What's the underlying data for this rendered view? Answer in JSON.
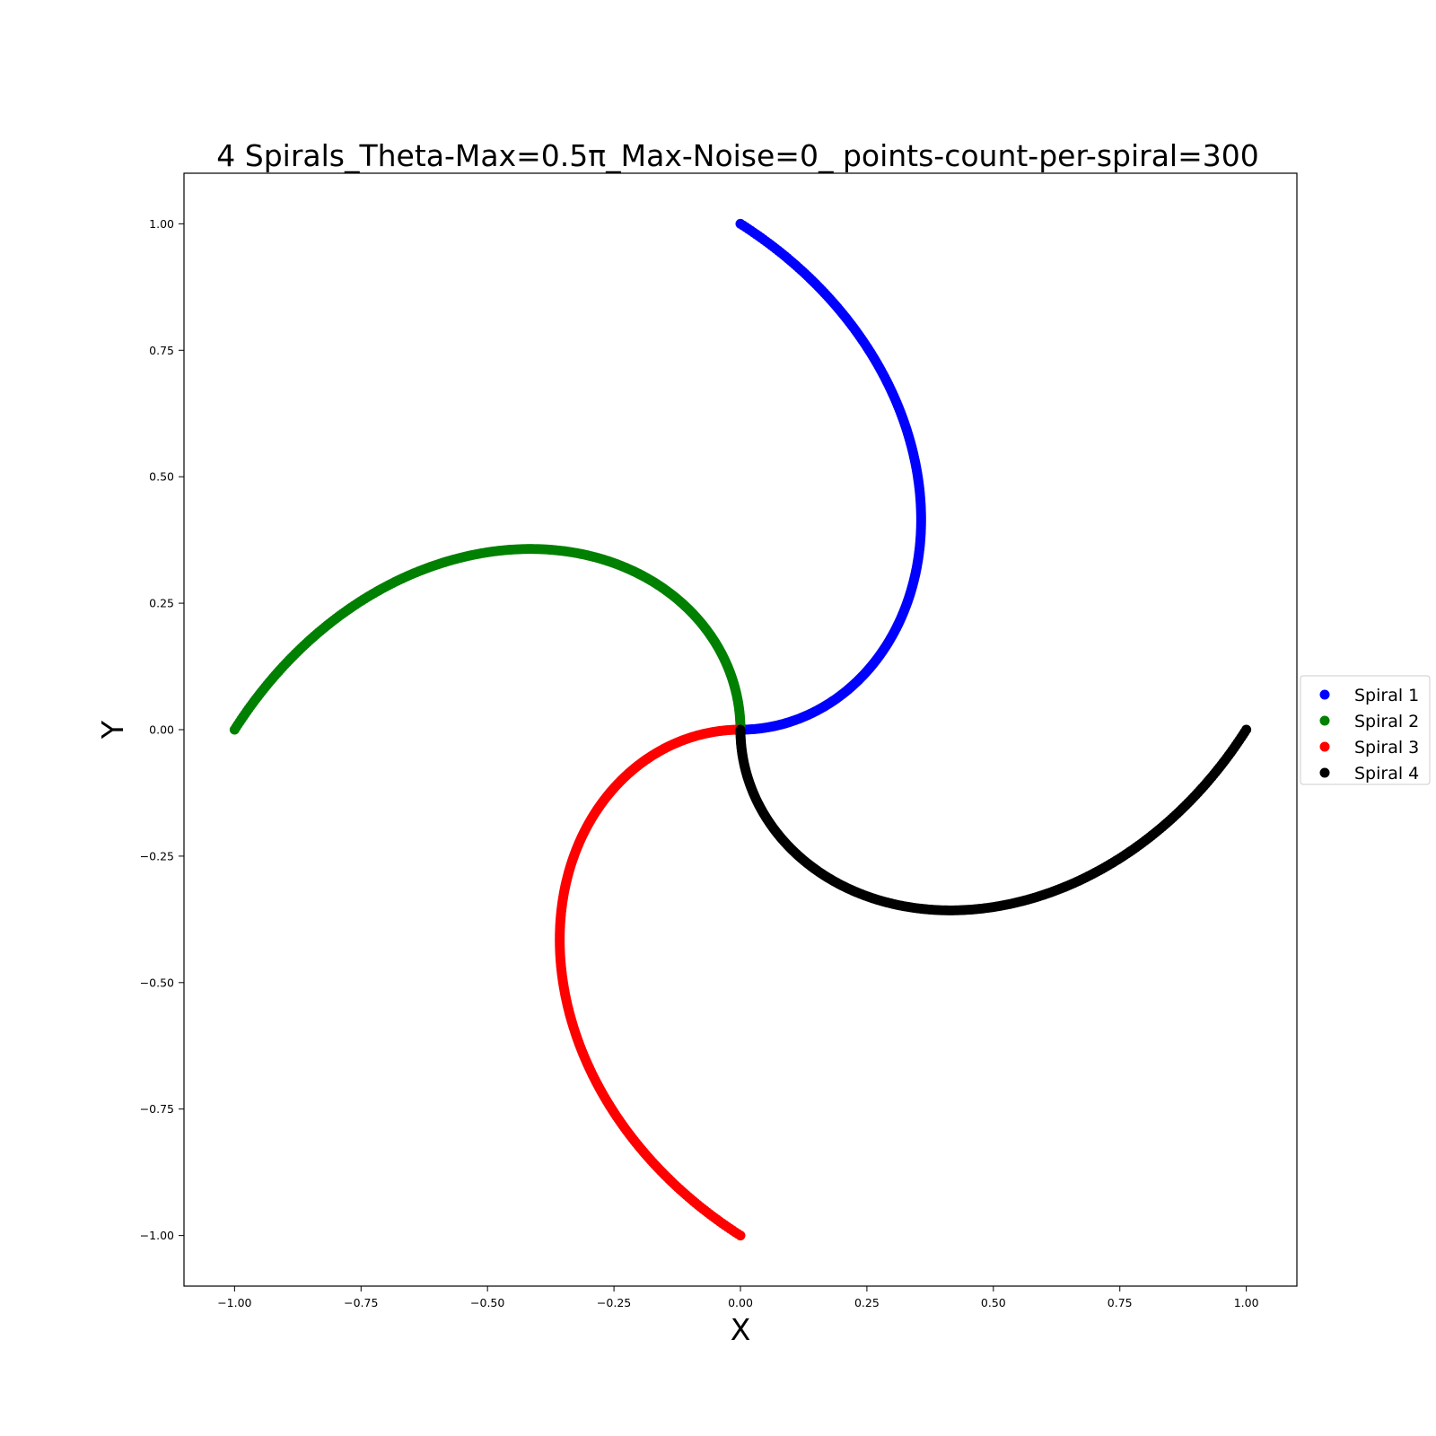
{
  "chart_data": {
    "type": "scatter",
    "title": "4 Spirals_Theta-Max=0.5π_Max-Noise=0_ points-count-per-spiral=300",
    "xlabel": "X",
    "ylabel": "Y",
    "xlim": [
      -1.1,
      1.1
    ],
    "ylim": [
      -1.1,
      1.1
    ],
    "xticks": [
      -1.0,
      -0.75,
      -0.5,
      -0.25,
      0.0,
      0.25,
      0.5,
      0.75,
      1.0
    ],
    "yticks": [
      -1.0,
      -0.75,
      -0.5,
      -0.25,
      0.0,
      0.25,
      0.5,
      0.75,
      1.0
    ],
    "xtick_labels": [
      "−1.00",
      "−0.75",
      "−0.50",
      "−0.25",
      "0.00",
      "0.25",
      "0.50",
      "0.75",
      "1.00"
    ],
    "ytick_labels": [
      "−1.00",
      "−0.75",
      "−0.50",
      "−0.25",
      "0.00",
      "0.25",
      "0.50",
      "0.75",
      "1.00"
    ],
    "grid": false,
    "legend_position": "right",
    "series": [
      {
        "name": "Spiral 1",
        "color": "#0000ff",
        "x": [
          0.0,
          0.0129,
          0.0256,
          0.0379,
          0.0497,
          0.0608,
          0.0712,
          0.0806,
          0.089,
          0.0963,
          0.1026,
          0.1081,
          0.1135,
          0.1187,
          0.1237,
          0.1287,
          0.1335,
          0.1382,
          0.1427,
          0.1472,
          0.1515,
          0.1557,
          0.1598,
          0.1638,
          0.1677,
          0.1714,
          0.1751,
          0.1786,
          0.182,
          0.1853,
          0.1885,
          0.1916,
          0.1945,
          0.1974,
          0.2001,
          0.2027,
          0.2051,
          0.2075,
          0.2097,
          0.2118,
          0.2138,
          0.2156,
          0.2173,
          0.2189,
          0.2203,
          0.2216,
          0.2227,
          0.2237,
          0.2246,
          0.2253,
          0.2259,
          0.2263,
          0.2266,
          0.2267,
          0.2267,
          0.2265,
          0.2262,
          0.2257,
          0.2251,
          0.2243
        ],
        "y": [
          1.0,
          0.9989,
          0.9968,
          0.9929,
          0.9877,
          0.9815,
          0.9745,
          0.9673,
          0.9601,
          0.9528,
          0.9454,
          0.9379,
          0.9302,
          0.9224,
          0.9143,
          0.9061,
          0.8977,
          0.8891,
          0.8803,
          0.8713,
          0.8621,
          0.8527,
          0.8431,
          0.8333,
          0.8233,
          0.8131,
          0.8027,
          0.7921,
          0.7813,
          0.7703,
          0.7591,
          0.7477,
          0.7361,
          0.7243,
          0.7123,
          0.7001,
          0.6877,
          0.6751,
          0.6623,
          0.6493,
          0.6361,
          0.6227,
          0.6091,
          0.5953,
          0.5813,
          0.5671,
          0.5527,
          0.5381,
          0.5233,
          0.5083,
          0.4931,
          0.4777,
          0.4621,
          0.4463,
          0.4303,
          0.4141,
          0.3977,
          0.3811,
          0.3643,
          0.3473
        ]
      }
    ]
  }
}
